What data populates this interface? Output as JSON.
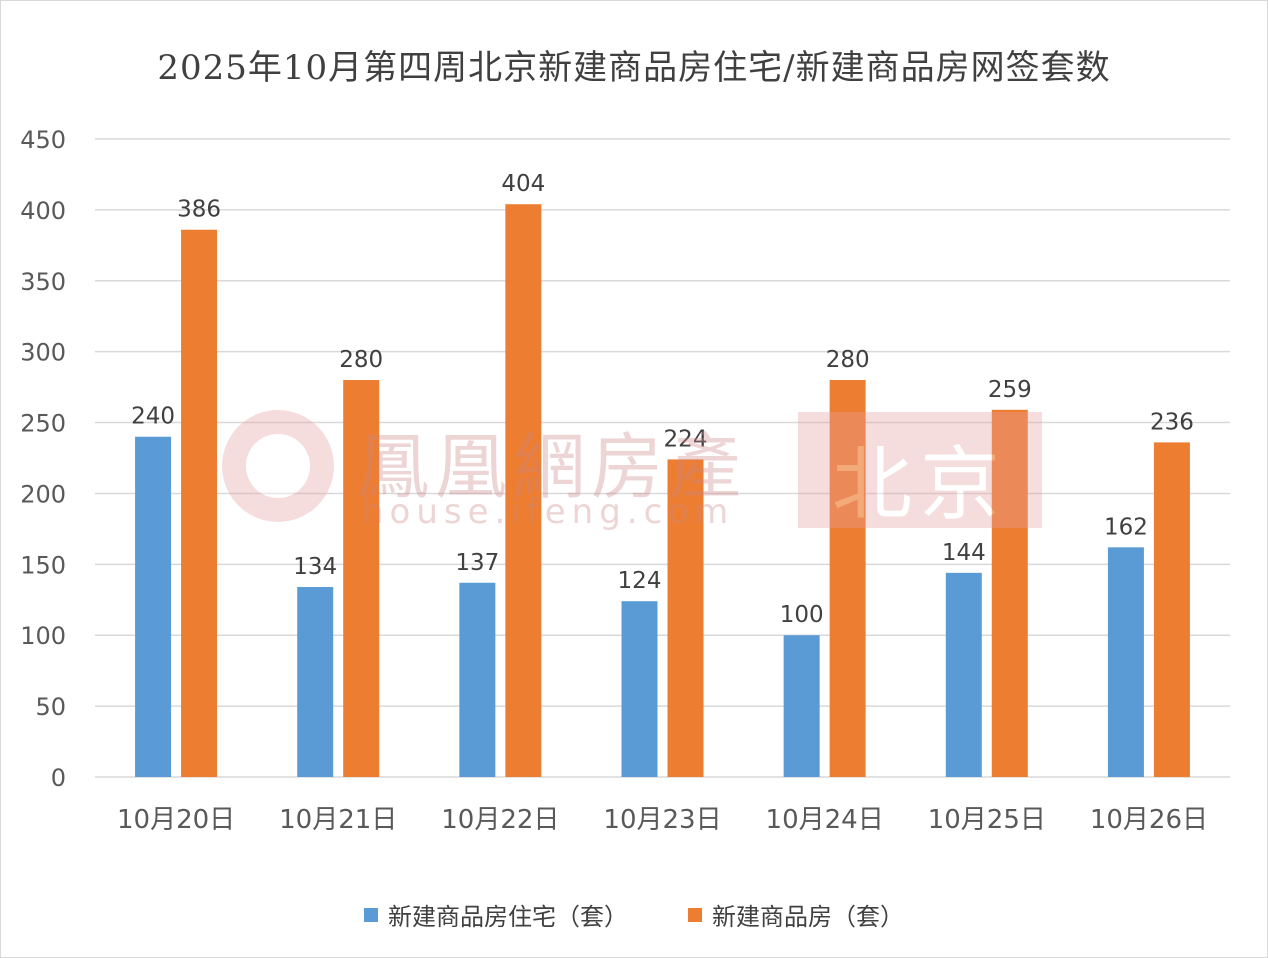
{
  "chart_data": {
    "type": "bar",
    "title": "2025年10月第四周北京新建商品房住宅/新建商品房网签套数",
    "categories": [
      "10月20日",
      "10月21日",
      "10月22日",
      "10月23日",
      "10月24日",
      "10月25日",
      "10月26日"
    ],
    "series": [
      {
        "name": "新建商品房住宅（套）",
        "values": [
          240,
          134,
          137,
          124,
          100,
          144,
          162
        ],
        "color": "#5b9bd5"
      },
      {
        "name": "新建商品房（套）",
        "values": [
          386,
          280,
          404,
          224,
          280,
          259,
          236
        ],
        "color": "#ed7d31"
      }
    ],
    "ylim": [
      0,
      450
    ],
    "yticks": [
      0,
      50,
      100,
      150,
      200,
      250,
      300,
      350,
      400,
      450
    ],
    "grid": true,
    "data_labels": true,
    "legend_position": "bottom",
    "gridline_color": "#d9d9d9",
    "text_color": "#595959"
  },
  "watermark": {
    "brand": "鳳凰網房產",
    "url": "house.ifeng.com",
    "city": "北京"
  }
}
